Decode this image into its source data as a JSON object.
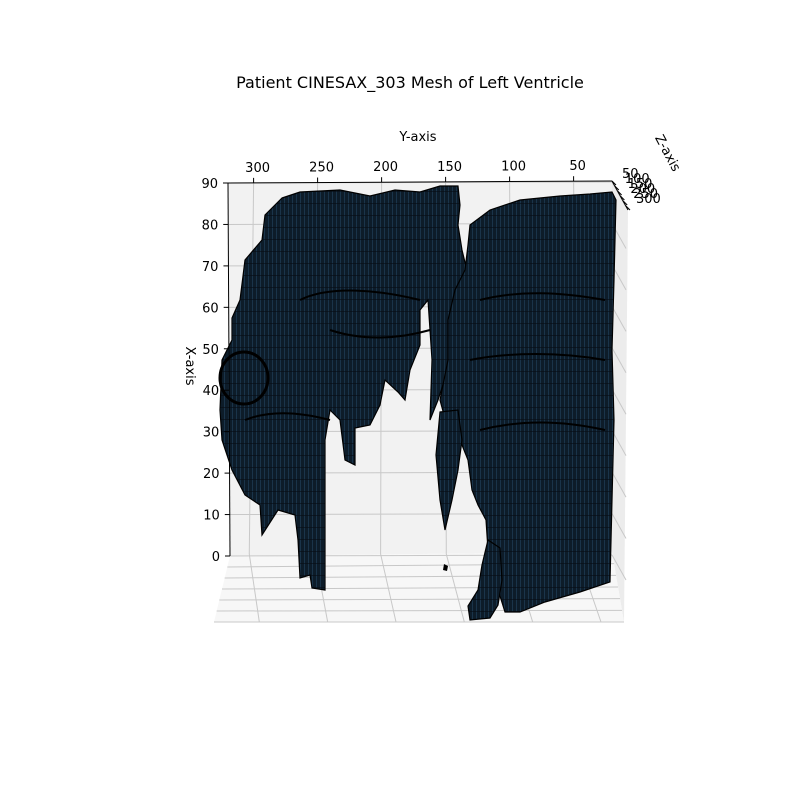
{
  "chart_data": {
    "type": "surface3d",
    "title": "Patient CINESAX_303 Mesh of Left Ventricle",
    "xlabel": "X-axis",
    "ylabel": "Y-axis",
    "zlabel": "Z-axis",
    "x_ticks": [
      "0",
      "10",
      "20",
      "30",
      "40",
      "50",
      "60",
      "70",
      "80",
      "90"
    ],
    "y_ticks": [
      "300",
      "250",
      "200",
      "150",
      "100",
      "50"
    ],
    "z_ticks": [
      "50",
      "100",
      "150",
      "200",
      "250",
      "300"
    ],
    "xlim": [
      0,
      90
    ],
    "ylim": [
      0,
      320
    ],
    "zlim": [
      50,
      300
    ],
    "grid": true,
    "colors": {
      "mesh_face": "#0d1c29",
      "mesh_edge": "#000000",
      "mesh_highlight": "#1d3a52",
      "pane": "#f2f2f2",
      "grid": "#c8c8c8"
    }
  }
}
